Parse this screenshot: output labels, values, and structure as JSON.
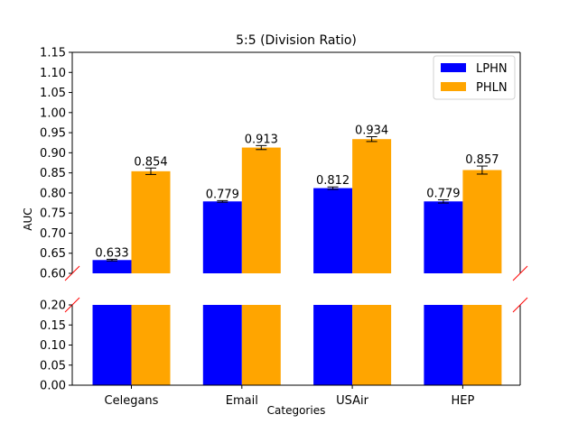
{
  "chart_data": {
    "type": "bar",
    "title": "5:5 (Division Ratio)",
    "xlabel": "Categories",
    "ylabel": "AUC",
    "categories": [
      "Celegans",
      "Email",
      "USAir",
      "HEP"
    ],
    "series": [
      {
        "name": "LPHN",
        "color": "#0000ff",
        "values": [
          0.633,
          0.779,
          0.812,
          0.779
        ],
        "errors": [
          0.002,
          0.002,
          0.003,
          0.004
        ]
      },
      {
        "name": "PHLN",
        "color": "#ffa500",
        "values": [
          0.854,
          0.913,
          0.934,
          0.857
        ],
        "errors": [
          0.008,
          0.005,
          0.006,
          0.01
        ]
      }
    ],
    "data_labels": [
      [
        "0.633",
        "0.779",
        "0.812",
        "0.779"
      ],
      [
        "0.854",
        "0.913",
        "0.934",
        "0.857"
      ]
    ],
    "broken_axis": true,
    "upper_ylim": [
      0.6,
      1.15
    ],
    "lower_ylim": [
      0.0,
      0.2
    ],
    "upper_ticks": [
      "0.60",
      "0.65",
      "0.70",
      "0.75",
      "0.80",
      "0.85",
      "0.90",
      "0.95",
      "1.00",
      "1.05",
      "1.10",
      "1.15"
    ],
    "lower_ticks": [
      "0.00",
      "0.05",
      "0.10",
      "0.15",
      "0.20"
    ],
    "legend_position": "top-right",
    "grid": false
  }
}
